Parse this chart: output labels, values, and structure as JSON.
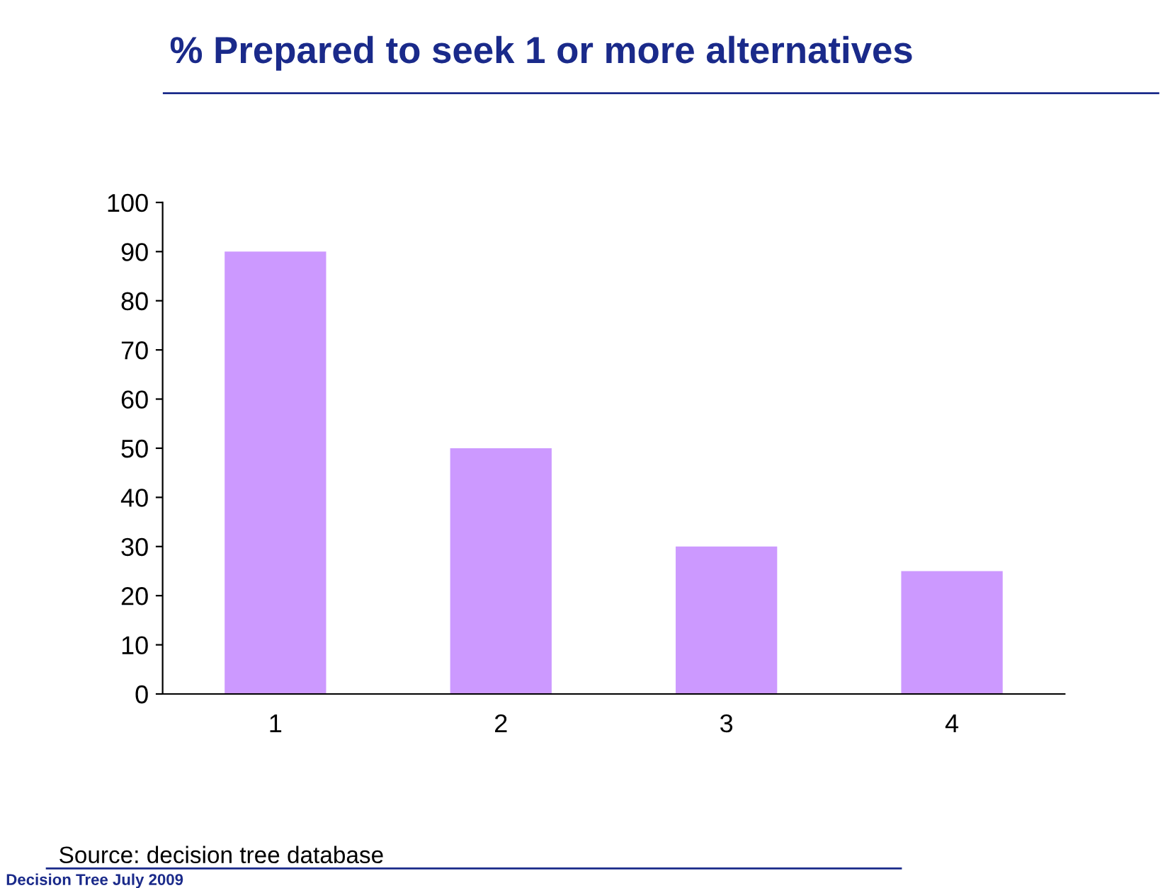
{
  "chart_data": {
    "type": "bar",
    "title": "% Prepared to seek 1 or more alternatives",
    "categories": [
      "1",
      "2",
      "3",
      "4"
    ],
    "values": [
      90,
      50,
      30,
      25
    ],
    "color": "#cc99ff",
    "ylim": [
      0,
      100
    ],
    "yticks": [
      0,
      10,
      20,
      30,
      40,
      50,
      60,
      70,
      80,
      90,
      100
    ],
    "grid": false,
    "legend": false,
    "annotations": [
      "Source: decision tree database",
      "Decision Tree July 2009"
    ]
  }
}
